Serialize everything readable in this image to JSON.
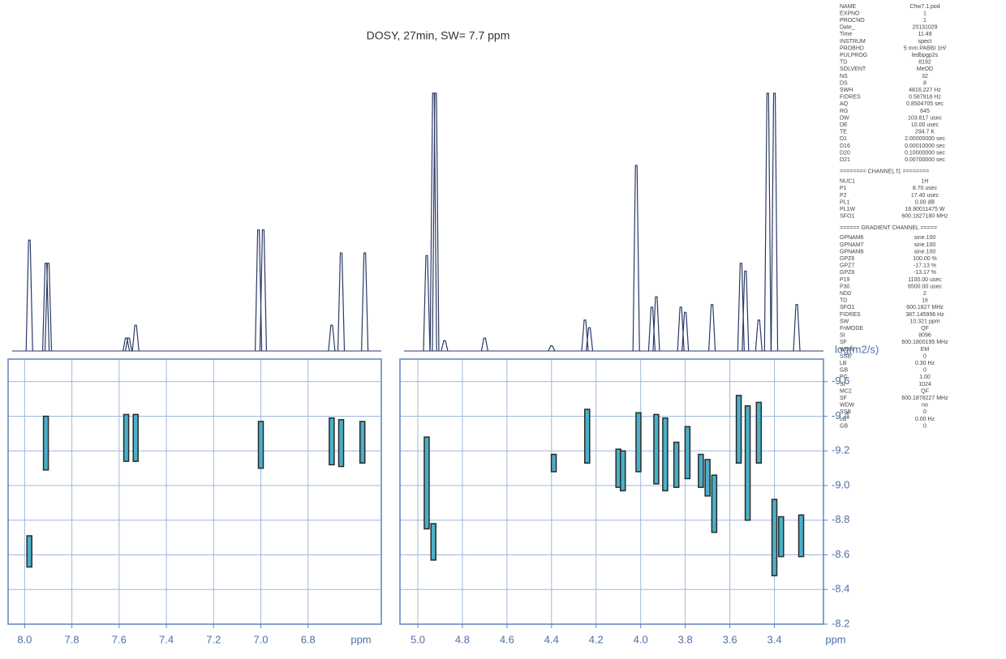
{
  "chart_data": [
    {
      "type": "dosy",
      "title": "DOSY, 27min, SW= 7.7 ppm",
      "xlabel": "ppm",
      "xlim": [
        8.07,
        6.49
      ],
      "xticks": [
        {
          "value": 8,
          "label": "8.0"
        },
        7.8,
        7.6,
        7.4,
        7.2,
        {
          "value": 7,
          "label": "7.0"
        },
        6.8
      ],
      "ylim": [
        -8.2,
        -9.73
      ],
      "yticks": [
        -9.6,
        -9.4,
        -9.2,
        -9,
        -8.8,
        -8.6,
        -8.4,
        -8.2
      ],
      "grid": true,
      "intensity_lim": [
        0,
        100
      ],
      "spectrum": {
        "x": [
          7.98,
          7.91,
          7.9,
          7.57,
          7.56,
          7.53,
          7.01,
          6.99,
          6.7,
          6.66,
          6.56
        ],
        "heights": [
          43,
          34,
          34,
          5,
          5,
          10,
          47,
          47,
          10,
          38,
          38
        ],
        "color": "#2b3a67"
      },
      "peaks": {
        "x": [
          7.91,
          7.98,
          7.57,
          7.53,
          7.0,
          6.7,
          6.66,
          6.57
        ],
        "low": [
          -9.4,
          -8.71,
          -9.41,
          -9.41,
          -9.37,
          -9.39,
          -9.38,
          -9.37
        ],
        "high": [
          -9.09,
          -8.53,
          -9.14,
          -9.14,
          -9.1,
          -9.12,
          -9.11,
          -9.13
        ],
        "color": "#4ab0c8",
        "edge": "#2a2a2a"
      }
    },
    {
      "type": "dosy",
      "xlabel": "ppm",
      "ylabel": "log(m2/s)",
      "xlim": [
        5.08,
        3.18
      ],
      "xticks": [
        {
          "value": 5,
          "label": "5.0"
        },
        4.8,
        4.6,
        4.4,
        4.2,
        {
          "value": 4,
          "label": "4.0"
        },
        3.8,
        3.6,
        3.4
      ],
      "ylim": [
        -8.2,
        -9.73
      ],
      "yticks": [
        -9.6,
        -9.4,
        -9.2,
        {
          "value": -9,
          "label": "-9.0"
        },
        -8.8,
        -8.6,
        -8.4,
        -8.2
      ],
      "grid": true,
      "intensity_lim": [
        0,
        100
      ],
      "spectrum": {
        "x": [
          4.96,
          4.93,
          4.92,
          4.88,
          4.7,
          4.4,
          4.25,
          4.23,
          4.02,
          3.95,
          3.93,
          3.82,
          3.8,
          3.68,
          3.55,
          3.53,
          3.47,
          3.43,
          3.4,
          3.3
        ],
        "heights": [
          37,
          100,
          100,
          4,
          5,
          2,
          12,
          9,
          72,
          17,
          21,
          17,
          15,
          18,
          34,
          31,
          12,
          100,
          100,
          18
        ],
        "color": "#2b3a67"
      },
      "peaks": {
        "x": [
          4.96,
          4.93,
          4.39,
          4.24,
          4.1,
          4.08,
          4.01,
          3.93,
          3.89,
          3.84,
          3.79,
          3.73,
          3.7,
          3.67,
          3.56,
          3.52,
          3.47,
          3.4,
          3.37,
          3.28
        ],
        "low": [
          -9.28,
          -8.78,
          -9.18,
          -9.44,
          -9.21,
          -9.2,
          -9.42,
          -9.41,
          -9.39,
          -9.25,
          -9.34,
          -9.18,
          -9.15,
          -9.06,
          -9.52,
          -9.46,
          -9.48,
          -8.92,
          -8.82,
          -8.83
        ],
        "high": [
          -8.75,
          -8.57,
          -9.08,
          -9.13,
          -8.99,
          -8.97,
          -9.08,
          -9.01,
          -8.97,
          -8.99,
          -9.04,
          -8.99,
          -8.94,
          -8.73,
          -9.13,
          -8.8,
          -9.13,
          -8.48,
          -8.59,
          -8.59
        ],
        "color": "#4ab0c8",
        "edge": "#2a2a2a"
      }
    }
  ],
  "parameters": [
    [
      "NAME",
      "Chw7.1.pod"
    ],
    [
      "EXPNO",
      "1"
    ],
    [
      "PROCNO",
      "1"
    ],
    [
      "Date_",
      "20131029"
    ],
    [
      "Time",
      "11.49"
    ],
    [
      "INSTRUM",
      "spect"
    ],
    [
      "PROBHD",
      "5 mm PABBI 1H/"
    ],
    [
      "PULPROG",
      "ledbpgp2s"
    ],
    [
      "TD",
      "8192"
    ],
    [
      "SOLVENT",
      "MeOD"
    ],
    [
      "NS",
      "32"
    ],
    [
      "DS",
      "8"
    ],
    [
      "SWH",
      "4816.227 Hz"
    ],
    [
      "FIDRES",
      "0.587918 Hz"
    ],
    [
      "AQ",
      "0.8504705 sec"
    ],
    [
      "RG",
      "645"
    ],
    [
      "DW",
      "103.817 usec"
    ],
    [
      "DE",
      "10.00 usec"
    ],
    [
      "TE",
      "294.7 K"
    ],
    [
      "D1",
      "2.00000000 sec"
    ],
    [
      "D16",
      "0.00010000 sec"
    ],
    [
      "D20",
      "0.10000000 sec"
    ],
    [
      "D21",
      "0.00700000 sec"
    ],
    [
      "======== CHANNEL f1 ========"
    ],
    [
      "NUC1",
      "1H"
    ],
    [
      "P1",
      "8.70 usec"
    ],
    [
      "P2",
      "17.40 usec"
    ],
    [
      "PL1",
      "0.00 dB"
    ],
    [
      "PL1W",
      "16.90011475 W"
    ],
    [
      "SFO1",
      "600.1827180 MHz"
    ],
    [
      "====== GRADIENT CHANNEL ====="
    ],
    [
      "GPNAM6",
      "sine.100"
    ],
    [
      "GPNAM7",
      "sine.100"
    ],
    [
      "GPNAM8",
      "sine.100"
    ],
    [
      "GPZ6",
      "100.00 %"
    ],
    [
      "GPZ7",
      "-17.13 %"
    ],
    [
      "GPZ8",
      "-13.17 %"
    ],
    [
      "P19",
      "1100.00 usec"
    ],
    [
      "P30",
      "6500.00 usec"
    ],
    [
      "ND0",
      "2"
    ],
    [
      "TD",
      "16"
    ],
    [
      "SFO1",
      "600.1827 MHz"
    ],
    [
      "FIDRES",
      "387.145996 Hz"
    ],
    [
      "SW",
      "10.321 ppm"
    ],
    [
      "FnMODE",
      "QF"
    ],
    [
      "SI",
      "8096"
    ],
    [
      "SF",
      "600.1800195 MHz"
    ],
    [
      "WDW",
      "EM"
    ],
    [
      "SSB",
      "0"
    ],
    [
      "LB",
      "0.30 Hz"
    ],
    [
      "GB",
      "0"
    ],
    [
      "PC",
      "1.00"
    ],
    [
      "SI",
      "1024"
    ],
    [
      "MC2",
      "QF"
    ],
    [
      "SF",
      "600.1878227 MHz"
    ],
    [
      "WDW",
      "no"
    ],
    [
      "SSB",
      "0"
    ],
    [
      "LB",
      "0.00 Hz"
    ],
    [
      "GB",
      "0"
    ]
  ]
}
